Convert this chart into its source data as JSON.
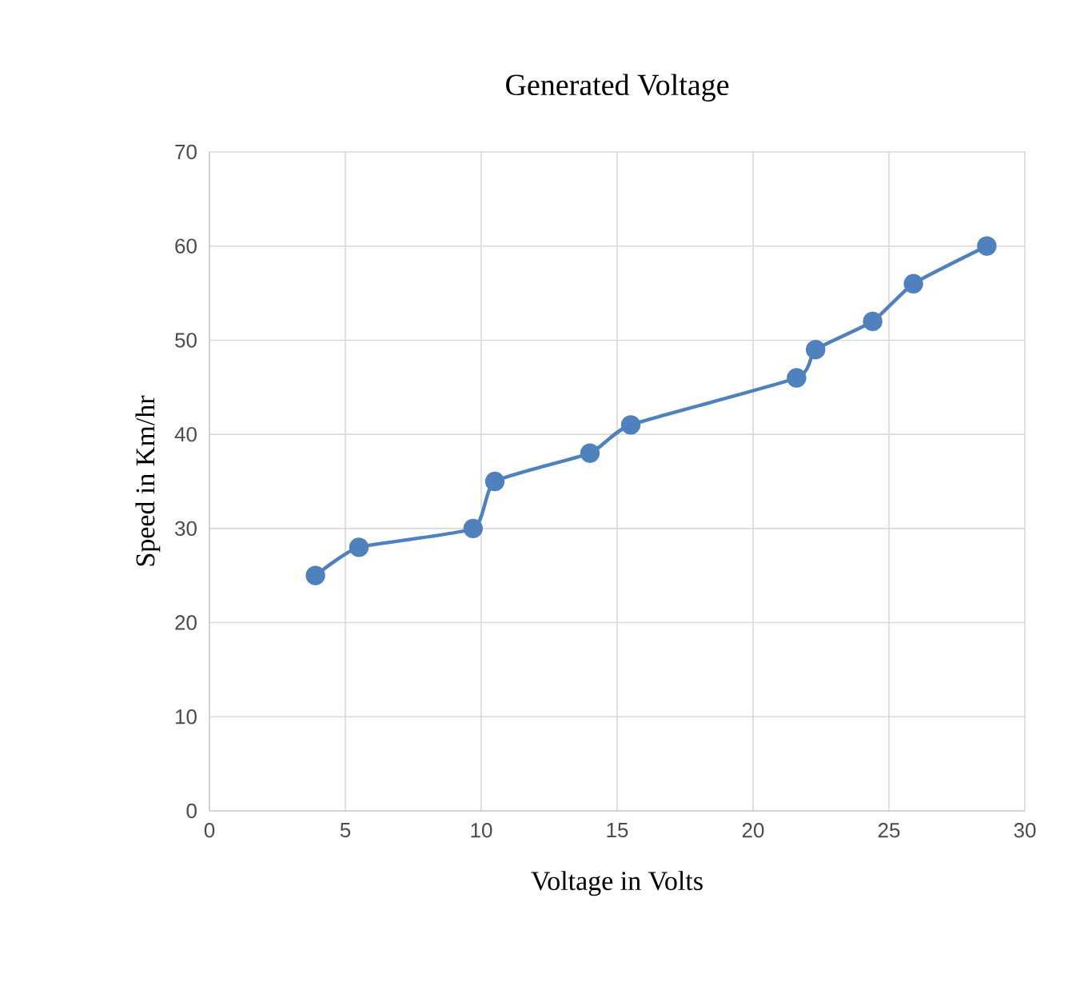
{
  "chart_data": {
    "type": "line",
    "title": "Generated Voltage",
    "xlabel": "Voltage in Volts",
    "ylabel": "Speed in Km/hr",
    "x": [
      3.9,
      5.5,
      9.7,
      10.5,
      14.0,
      15.5,
      21.6,
      22.3,
      24.4,
      25.9,
      28.6
    ],
    "series": [
      {
        "color": "#4f81bd",
        "values": [
          25,
          28,
          30,
          35,
          38,
          41,
          46,
          49,
          52,
          56,
          60
        ]
      }
    ],
    "xlim": [
      0,
      30
    ],
    "xticks": [
      0,
      5,
      10,
      15,
      20,
      25,
      30
    ],
    "ylim": [
      0,
      70
    ],
    "yticks": [
      0,
      10,
      20,
      30,
      40,
      50,
      60,
      70
    ],
    "grid": true,
    "marker": "circle",
    "line_style": "solid"
  }
}
